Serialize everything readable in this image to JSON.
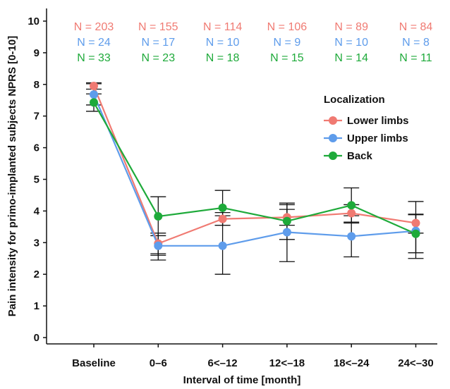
{
  "chart_data": {
    "type": "line",
    "xlabel": "Interval of time [month]",
    "ylabel": "Pain intensity for primo-implanted subjects NPRS [0-10]",
    "categories": [
      "Baseline",
      "0–6",
      "6<–12",
      "12<–18",
      "18<–24",
      "24<–30"
    ],
    "yticks": [
      "0",
      "1",
      "2",
      "3",
      "4",
      "5",
      "6",
      "7",
      "8",
      "9",
      "10"
    ],
    "ylim": [
      -0.2,
      10.4
    ],
    "grid": false,
    "legend": {
      "title": "Localization",
      "position": "right",
      "entries": [
        "Lower limbs",
        "Upper limbs",
        "Back"
      ]
    },
    "series": [
      {
        "name": "Lower limbs",
        "color": "#F07A72",
        "values": [
          7.95,
          2.97,
          3.75,
          3.8,
          3.93,
          3.62
        ],
        "err_low": [
          7.85,
          2.65,
          3.55,
          3.55,
          3.65,
          3.3
        ],
        "err_high": [
          8.05,
          3.3,
          3.95,
          4.05,
          4.2,
          3.9
        ],
        "n_labels": [
          "N = 203",
          "N = 155",
          "N = 114",
          "N = 106",
          "N = 89",
          "N = 84"
        ]
      },
      {
        "name": "Upper limbs",
        "color": "#5E9CEB",
        "values": [
          7.68,
          2.9,
          2.9,
          3.33,
          3.2,
          3.37
        ],
        "err_low": [
          7.35,
          2.6,
          2.0,
          2.4,
          2.55,
          2.5
        ],
        "err_high": [
          8.02,
          3.22,
          3.85,
          4.25,
          3.85,
          4.3
        ],
        "n_labels": [
          "N = 24",
          "N = 17",
          "N = 10",
          "N = 9",
          "N = 10",
          "N = 8"
        ]
      },
      {
        "name": "Back",
        "color": "#1EAA3A",
        "values": [
          7.43,
          3.83,
          4.1,
          3.68,
          4.18,
          3.28
        ],
        "err_low": [
          7.15,
          2.45,
          3.55,
          3.1,
          3.62,
          2.68
        ],
        "err_high": [
          7.7,
          4.45,
          4.65,
          4.2,
          4.73,
          3.88
        ],
        "n_labels": [
          "N = 33",
          "N = 23",
          "N = 18",
          "N = 15",
          "N = 14",
          "N = 11"
        ]
      }
    ]
  }
}
